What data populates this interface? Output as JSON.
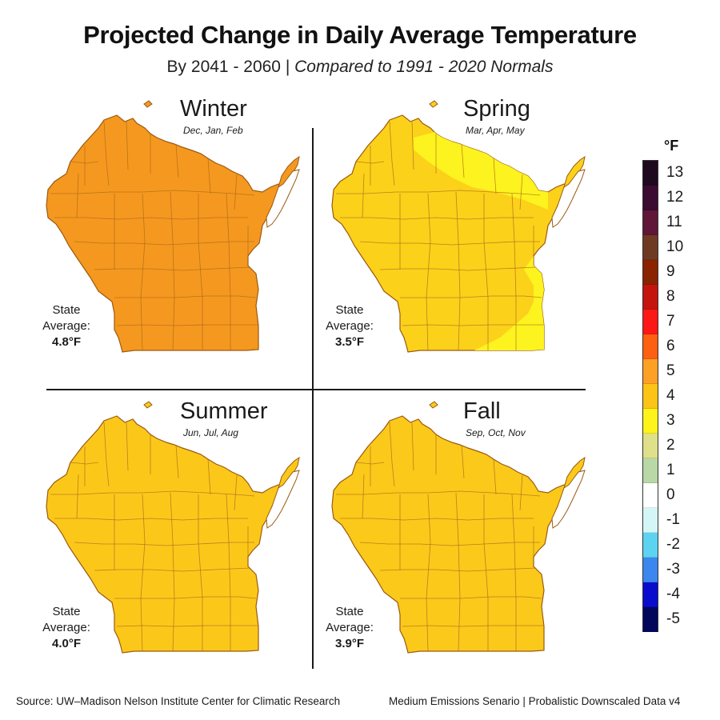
{
  "title": "Projected Change in Daily Average Temperature",
  "subtitle": {
    "period": "By 2041 - 2060 | ",
    "comparison": "Compared to 1991 - 2020 Normals"
  },
  "panels": [
    {
      "season": "Winter",
      "months": "Dec, Jan, Feb",
      "avg_label": "State Average:",
      "avg_value": "4.8°F",
      "fill": "#f5981f"
    },
    {
      "season": "Spring",
      "months": "Mar, Apr, May",
      "avg_label": "State Average:",
      "avg_value": "3.5°F",
      "fill": "#fcd11a",
      "highlight_fill": "#fdf31f"
    },
    {
      "season": "Summer",
      "months": "Jun, Jul, Aug",
      "avg_label": "State Average:",
      "avg_value": "4.0°F",
      "fill": "#fbc81a"
    },
    {
      "season": "Fall",
      "months": "Sep, Oct, Nov",
      "avg_label": "State Average:",
      "avg_value": "3.9°F",
      "fill": "#fbc91a"
    }
  ],
  "legend": {
    "unit": "°F",
    "items": [
      {
        "label": "13",
        "color": "#1e0a1f"
      },
      {
        "label": "12",
        "color": "#3b0b32"
      },
      {
        "label": "11",
        "color": "#601637"
      },
      {
        "label": "10",
        "color": "#6e3a22"
      },
      {
        "label": "9",
        "color": "#8a2300"
      },
      {
        "label": "8",
        "color": "#c4140e"
      },
      {
        "label": "7",
        "color": "#fd1818"
      },
      {
        "label": "6",
        "color": "#fd6011"
      },
      {
        "label": "5",
        "color": "#fea024"
      },
      {
        "label": "4",
        "color": "#fcc417"
      },
      {
        "label": "3",
        "color": "#fef31a"
      },
      {
        "label": "2",
        "color": "#dee08a"
      },
      {
        "label": "1",
        "color": "#b8d8a6"
      },
      {
        "label": "0",
        "color": "#ffffff"
      },
      {
        "label": "-1",
        "color": "#d4f6f9"
      },
      {
        "label": "-2",
        "color": "#5dd3f2"
      },
      {
        "label": "-3",
        "color": "#3c86ef"
      },
      {
        "label": "-4",
        "color": "#0a0ccd"
      },
      {
        "label": "-5",
        "color": "#02075c"
      }
    ]
  },
  "footer": {
    "source": "Source: UW–Madison Nelson Institute Center for Climatic Research",
    "scenario": "Medium Emissions Senario | Probalistic Downscaled Data v4"
  }
}
